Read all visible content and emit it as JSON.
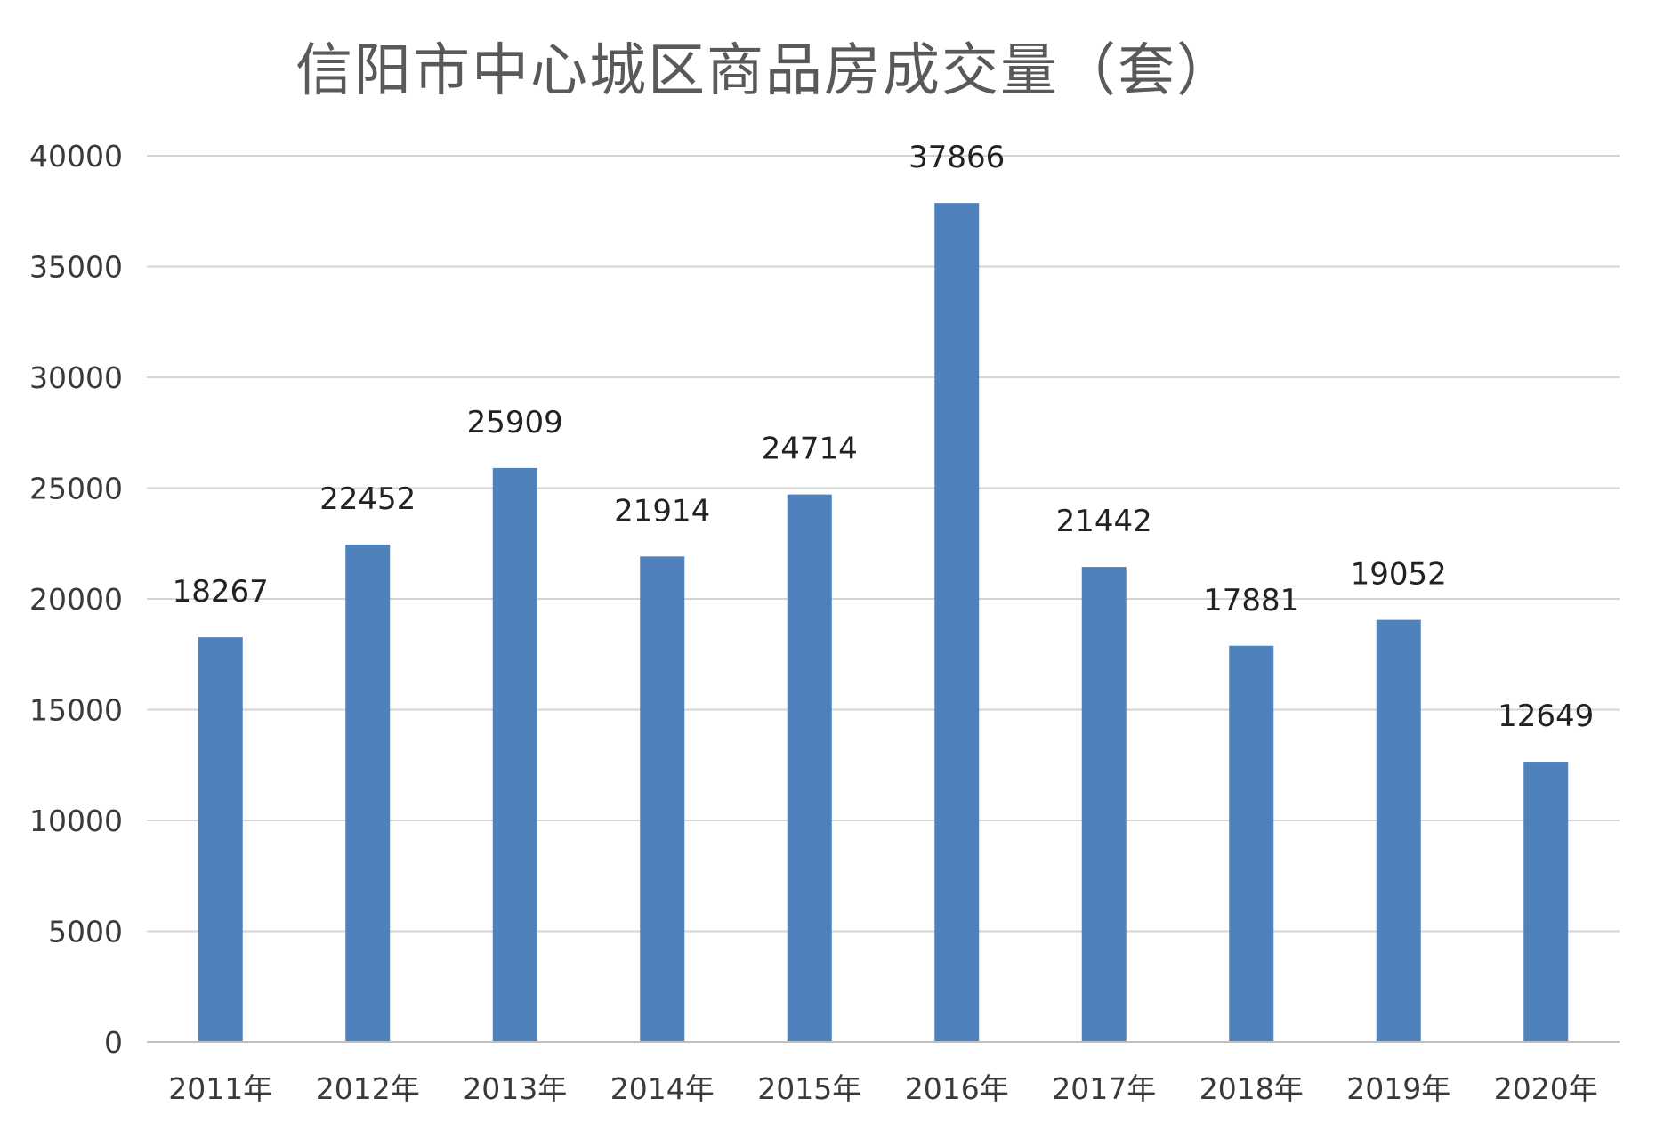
{
  "chart_data": {
    "type": "bar",
    "title": "信阳市中心城区商品房成交量（套）",
    "categories": [
      "2011年",
      "2012年",
      "2013年",
      "2014年",
      "2015年",
      "2016年",
      "2017年",
      "2018年",
      "2019年",
      "2020年"
    ],
    "values": [
      18267,
      22452,
      25909,
      21914,
      24714,
      37866,
      21442,
      17881,
      19052,
      12649
    ],
    "data_labels": [
      "18267",
      "22452",
      "25909",
      "21914",
      "24714",
      "37866",
      "21442",
      "17881",
      "19052",
      "12649"
    ],
    "ylim": [
      0,
      40000
    ],
    "y_ticks": [
      0,
      5000,
      10000,
      15000,
      20000,
      25000,
      30000,
      35000,
      40000
    ],
    "y_tick_labels": [
      "0",
      "5000",
      "10000",
      "15000",
      "20000",
      "25000",
      "30000",
      "35000",
      "40000"
    ],
    "grid": true,
    "legend": "none",
    "bar_color": "#4f81bd"
  }
}
